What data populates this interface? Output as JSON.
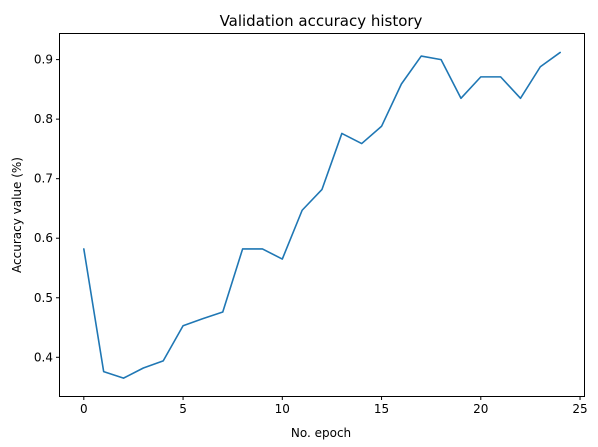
{
  "chart_data": {
    "type": "line",
    "title": "Validation accuracy history",
    "xlabel": "No. epoch",
    "ylabel": "Accuracy value (%)",
    "xlim": [
      -1.2,
      25.2
    ],
    "ylim": [
      0.335,
      0.943
    ],
    "xticks": [
      0,
      5,
      10,
      15,
      20,
      25
    ],
    "yticks": [
      0.4,
      0.5,
      0.6,
      0.7,
      0.8,
      0.9
    ],
    "xtick_labels": [
      "0",
      "5",
      "10",
      "15",
      "20",
      "25"
    ],
    "ytick_labels": [
      "0.4",
      "0.5",
      "0.6",
      "0.7",
      "0.8",
      "0.9"
    ],
    "grid": false,
    "colors": {
      "line": "#1f77b4"
    },
    "series": [
      {
        "x": [
          0,
          1,
          2,
          3,
          4,
          5,
          6,
          7,
          8,
          9,
          10,
          11,
          12,
          13,
          14,
          15,
          16,
          17,
          18,
          19,
          20,
          21,
          22,
          23,
          24
        ],
        "values": [
          0.582,
          0.376,
          0.365,
          0.382,
          0.394,
          0.453,
          0.465,
          0.476,
          0.582,
          0.582,
          0.565,
          0.647,
          0.682,
          0.776,
          0.759,
          0.788,
          0.859,
          0.906,
          0.9,
          0.835,
          0.871,
          0.871,
          0.835,
          0.888,
          0.912
        ]
      }
    ]
  }
}
